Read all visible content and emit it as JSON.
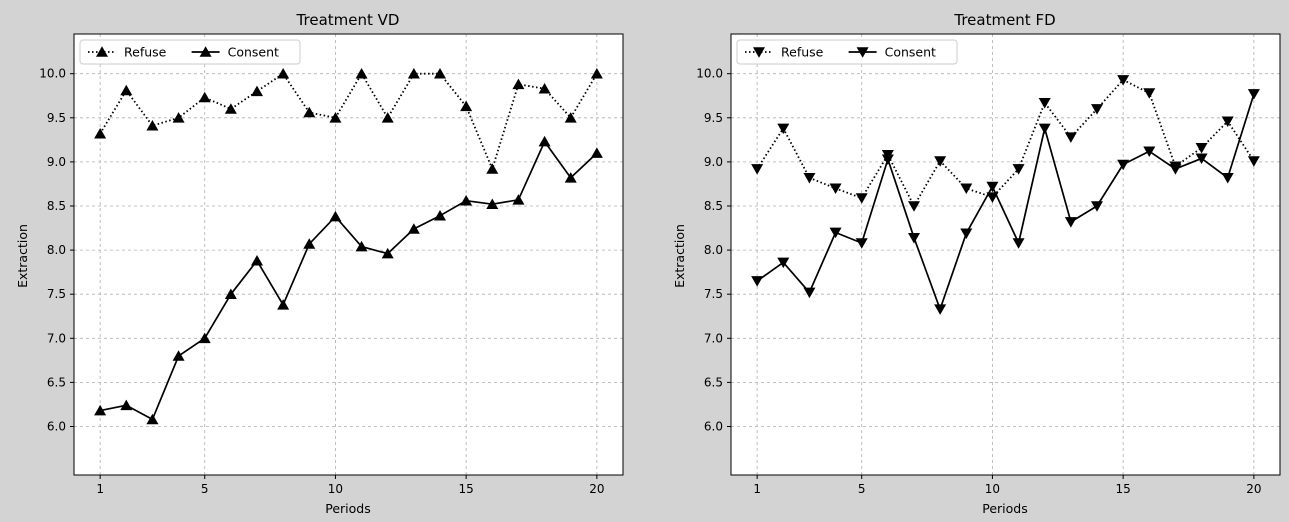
{
  "figure_background": "#d3d3d3",
  "chart_data": [
    {
      "type": "line",
      "title": "Treatment VD",
      "xlabel": "Periods",
      "ylabel": "Extraction",
      "xlim": [
        0,
        21
      ],
      "ylim": [
        5.45,
        10.45
      ],
      "xticks": [
        1,
        5,
        10,
        15,
        20
      ],
      "yticks": [
        6.0,
        6.5,
        7.0,
        7.5,
        8.0,
        8.5,
        9.0,
        9.5,
        10.0
      ],
      "grid": true,
      "legend": "upper-left",
      "marker": "triangle-up",
      "x": [
        1,
        2,
        3,
        4,
        5,
        6,
        7,
        8,
        9,
        10,
        11,
        12,
        13,
        14,
        15,
        16,
        17,
        18,
        19,
        20
      ],
      "series": [
        {
          "name": "Refuse",
          "linestyle": "dotted",
          "color": "#000000",
          "values": [
            9.32,
            9.81,
            9.41,
            9.5,
            9.73,
            9.6,
            9.8,
            10.0,
            9.56,
            9.5,
            10.0,
            9.5,
            10.0,
            10.0,
            9.63,
            8.92,
            9.88,
            9.83,
            9.5,
            10.0
          ]
        },
        {
          "name": "Consent",
          "linestyle": "solid",
          "color": "#000000",
          "values": [
            6.18,
            6.24,
            6.08,
            6.8,
            7.0,
            7.5,
            7.88,
            7.38,
            8.07,
            8.38,
            8.04,
            7.96,
            8.24,
            8.39,
            8.56,
            8.52,
            8.57,
            9.23,
            8.82,
            9.1
          ]
        }
      ]
    },
    {
      "type": "line",
      "title": "Treatment FD",
      "xlabel": "Periods",
      "ylabel": "Extraction",
      "xlim": [
        0,
        21
      ],
      "ylim": [
        5.45,
        10.45
      ],
      "xticks": [
        1,
        5,
        10,
        15,
        20
      ],
      "yticks": [
        6.0,
        6.5,
        7.0,
        7.5,
        8.0,
        8.5,
        9.0,
        9.5,
        10.0
      ],
      "grid": true,
      "legend": "upper-left",
      "marker": "triangle-down",
      "x": [
        1,
        2,
        3,
        4,
        5,
        6,
        7,
        8,
        9,
        10,
        11,
        12,
        13,
        14,
        15,
        16,
        17,
        18,
        19,
        20
      ],
      "series": [
        {
          "name": "Refuse",
          "linestyle": "dotted",
          "color": "#000000",
          "values": [
            8.92,
            9.38,
            8.82,
            8.7,
            8.59,
            9.08,
            8.5,
            9.01,
            8.7,
            8.6,
            8.92,
            9.67,
            9.28,
            9.6,
            9.93,
            9.78,
            8.95,
            9.16,
            9.46,
            9.01
          ]
        },
        {
          "name": "Consent",
          "linestyle": "solid",
          "color": "#000000",
          "values": [
            7.65,
            7.86,
            7.52,
            8.2,
            8.08,
            9.03,
            8.14,
            7.33,
            8.19,
            8.72,
            8.08,
            9.38,
            8.32,
            8.5,
            8.97,
            9.12,
            8.92,
            9.04,
            8.82,
            9.77
          ]
        }
      ]
    }
  ]
}
